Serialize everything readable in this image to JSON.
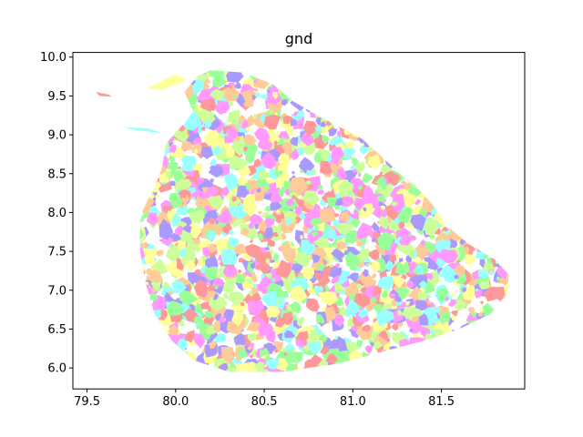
{
  "chart_data": {
    "type": "map",
    "title": "gnd",
    "xlabel": "",
    "ylabel": "",
    "xlim": [
      79.42,
      81.97
    ],
    "ylim": [
      5.73,
      10.06
    ],
    "x_ticks": [
      "79.5",
      "80.0",
      "80.5",
      "81.0",
      "81.5"
    ],
    "x_tick_values": [
      79.5,
      80.0,
      80.5,
      81.0,
      81.5
    ],
    "y_ticks": [
      "6.0",
      "6.5",
      "7.0",
      "7.5",
      "8.0",
      "8.5",
      "9.0",
      "9.5",
      "10.0"
    ],
    "y_tick_values": [
      6.0,
      6.5,
      7.0,
      7.5,
      8.0,
      8.5,
      9.0,
      9.5,
      10.0
    ],
    "grid": false,
    "fill_palette": [
      "#ff9999",
      "#ffff99",
      "#99ff99",
      "#99ffff",
      "#aa99ff",
      "#ff99ff",
      "#ffcc99",
      "#ccff99"
    ],
    "outline_lonlat": [
      [
        80.2,
        9.83
      ],
      [
        80.38,
        9.8
      ],
      [
        80.55,
        9.65
      ],
      [
        80.65,
        9.45
      ],
      [
        80.8,
        9.25
      ],
      [
        81.05,
        8.95
      ],
      [
        81.22,
        8.6
      ],
      [
        81.35,
        8.35
      ],
      [
        81.45,
        8.1
      ],
      [
        81.52,
        7.85
      ],
      [
        81.65,
        7.6
      ],
      [
        81.8,
        7.4
      ],
      [
        81.88,
        7.2
      ],
      [
        81.87,
        6.95
      ],
      [
        81.78,
        6.7
      ],
      [
        81.6,
        6.5
      ],
      [
        81.4,
        6.35
      ],
      [
        81.15,
        6.2
      ],
      [
        80.9,
        6.05
      ],
      [
        80.6,
        5.95
      ],
      [
        80.3,
        5.95
      ],
      [
        80.1,
        6.1
      ],
      [
        79.98,
        6.35
      ],
      [
        79.88,
        6.7
      ],
      [
        79.83,
        7.1
      ],
      [
        79.8,
        7.5
      ],
      [
        79.8,
        7.9
      ],
      [
        79.86,
        8.2
      ],
      [
        79.92,
        8.55
      ],
      [
        79.95,
        8.9
      ],
      [
        80.05,
        9.15
      ],
      [
        80.1,
        9.3
      ],
      [
        80.05,
        9.55
      ],
      [
        80.12,
        9.75
      ]
    ],
    "islands_lonlat": [
      [
        [
          79.55,
          9.55
        ],
        [
          79.62,
          9.52
        ],
        [
          79.64,
          9.49
        ],
        [
          79.57,
          9.5
        ]
      ],
      [
        [
          79.7,
          9.1
        ],
        [
          79.85,
          9.08
        ],
        [
          79.93,
          9.02
        ],
        [
          79.78,
          9.06
        ]
      ],
      [
        [
          79.81,
          8.0
        ],
        [
          79.85,
          8.2
        ],
        [
          79.88,
          8.15
        ],
        [
          79.84,
          7.98
        ]
      ],
      [
        [
          79.84,
          9.6
        ],
        [
          80.0,
          9.78
        ],
        [
          80.06,
          9.7
        ],
        [
          79.92,
          9.58
        ]
      ]
    ]
  }
}
